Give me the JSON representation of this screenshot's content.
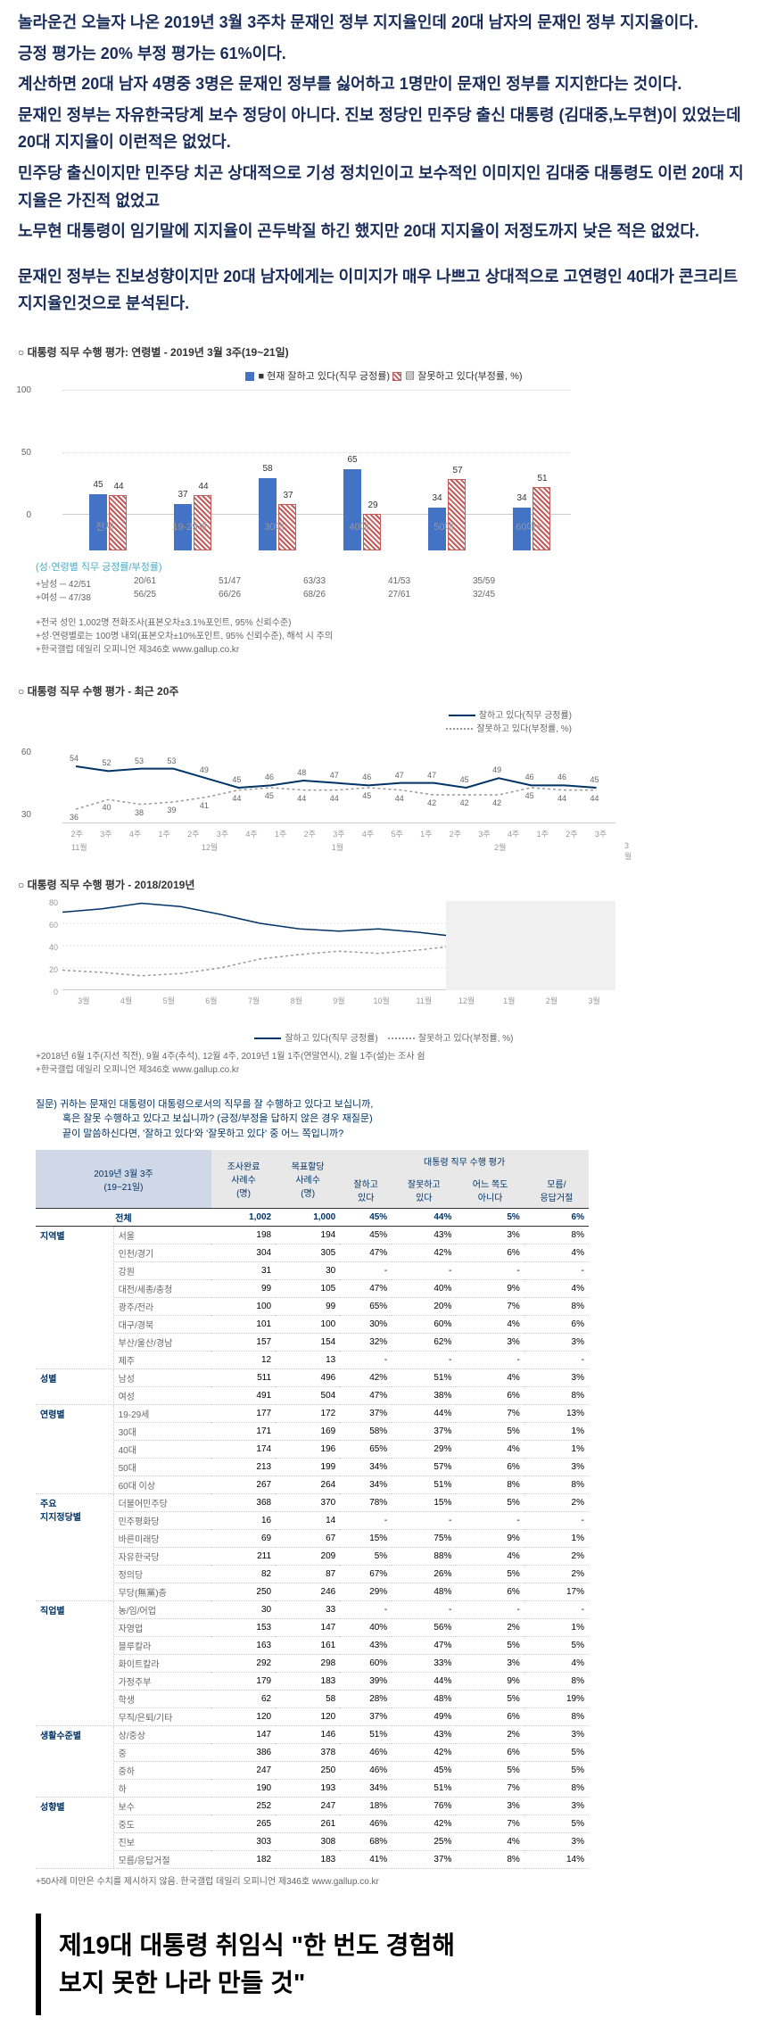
{
  "intro": {
    "p1": "놀라운건 오늘자 나온 2019년 3월 3주차 문재인 정부 지지율인데 20대 남자의 문재인 정부 지지율이다.",
    "p2": "긍정 평가는 20% 부정 평가는 61%이다.",
    "p3": "계산하면 20대 남자 4명중 3명은 문재인 정부를 싫어하고 1명만이 문재인 정부를 지지한다는 것이다.",
    "p4": "문재인 정부는 자유한국당계 보수 정당이 아니다.  진보 정당인 민주당 출신 대통령 (김대중,노무현)이 있었는데 20대 지지율이 이런적은 없었다.",
    "p5": "민주당 출신이지만 민주당 치곤 상대적으로 기성 정치인이고 보수적인 이미지인 김대중 대통령도 이런 20대 지지율은 가진적 없었고",
    "p6": "노무현 대통령이 임기말에 지지율이 곤두박질 하긴 했지만 20대 지지율이 저정도까지 낮은 적은 없었다."
  },
  "summary": "문재인 정부는 진보성향이지만  20대 남자에게는 이미지가 매우 나쁘고 상대적으로 고연령인 40대가 콘크리트 지지율인것으로 분석된다.",
  "chart1": {
    "title": "○  대통령 직무 수행 평가: 연령별 - 2019년 3월 3주(19~21일)",
    "legend_pos": "■ 현재 잘하고 있다(직무 긍정률) ",
    "legend_neg": "▨ 잘못하고 있다(부정률, %)",
    "y_ticks": [
      0,
      50,
      100
    ],
    "categories": [
      "전체",
      "19-29세",
      "30대",
      "40대",
      "50대",
      "60대+"
    ],
    "pos_values": [
      45,
      37,
      58,
      65,
      34,
      34
    ],
    "neg_values": [
      44,
      44,
      37,
      29,
      57,
      51
    ],
    "colors": {
      "pos": "#4472c4",
      "neg_pattern": "#c55a5a"
    },
    "gender_header": "(성·연령별 직무 긍정률/부정률)",
    "male_row": [
      "+남성 ─ 42/51",
      "20/61",
      "51/47",
      "63/33",
      "41/53",
      "35/59"
    ],
    "female_row": [
      "+여성 ─ 47/38",
      "56/25",
      "66/26",
      "68/26",
      "27/61",
      "32/45"
    ],
    "notes": [
      "+전국 성인 1,002명 전화조사(표본오차±3.1%포인트, 95% 신뢰수준)",
      "+성·연령별로는 100명 내외(표본오차±10%포인트, 95% 신뢰수준), 해석 시 주의",
      "+한국갤럽 데일리 오피니언 제346호 www.gallup.co.kr"
    ]
  },
  "chart2": {
    "title": "○  대통령 직무 수행 평가 - 최근 20주",
    "legend_pos": "잘하고 있다(직무 긍정률)",
    "legend_neg": "잘못하고 있다(부정률, %)",
    "y_ticks": [
      30,
      60
    ],
    "pos_line": [
      54,
      52,
      53,
      53,
      49,
      45,
      46,
      48,
      47,
      46,
      47,
      47,
      45,
      49,
      46,
      46,
      45
    ],
    "neg_line": [
      36,
      40,
      38,
      39,
      41,
      44,
      45,
      44,
      44,
      45,
      44,
      42,
      42,
      42,
      45,
      44,
      44
    ],
    "weeks": [
      "2주",
      "3주",
      "4주",
      "1주",
      "2주",
      "3주",
      "4주",
      "1주",
      "2주",
      "3주",
      "4주",
      "5주",
      "1주",
      "2주",
      "3주",
      "4주",
      "1주",
      "2주",
      "3주"
    ],
    "months": {
      "11월": 0,
      "12월": 4,
      "1월": 8,
      "2월": 13,
      "3월": 17
    }
  },
  "chart3": {
    "title": "○  대통령 직무 수행 평가 - 2018/2019년",
    "y_ticks": [
      0,
      20,
      40,
      60,
      80
    ],
    "months": [
      "3월",
      "4월",
      "5월",
      "6월",
      "7월",
      "8월",
      "9월",
      "10월",
      "11월",
      "12월",
      "1월",
      "2월",
      "3월"
    ],
    "legend_pos": "잘하고 있다(직무 긍정률)",
    "legend_neg": "잘못하고 있다(부정률, %)",
    "notes": [
      "+2018년 6월 1주(지선 직전), 9월 4주(추석), 12월 4주, 2019년 1월 1주(연말연시), 2월 1주(설)는 조사 쉼",
      "+한국갤럽 데일리 오피니언 제346호 www.gallup.co.kr"
    ]
  },
  "question": {
    "l1": "질문) 귀하는 문재인 대통령이 대통령으로서의 직무를 잘 수행하고 있다고 보십니까,",
    "l2": "혹은 잘못 수행하고 있다고 보십니까? (긍정/부정을 답하지 않은 경우 재질문)",
    "l3": "끝이 말씀하신다면, '잘하고 있다'와 '잘못하고 있다' 중 어느 쪽입니까?"
  },
  "table": {
    "header_date": "2019년 3월 3주\n(19~21일)",
    "header_top": [
      "조사완료\n사례수\n(명)",
      "목표할당\n사례수\n(명)"
    ],
    "header_eval": "대통령 직무 수행 평가",
    "header_cols": [
      "잘하고\n있다",
      "잘못하고\n있다",
      "어느 쪽도\n아니다",
      "모름/\n응답거절"
    ],
    "total": [
      "전체",
      "1,002",
      "1,000",
      "45%",
      "44%",
      "5%",
      "6%"
    ],
    "groups": [
      {
        "cat": "지역별",
        "rows": [
          [
            "서울",
            "198",
            "194",
            "45%",
            "43%",
            "3%",
            "8%"
          ],
          [
            "인천/경기",
            "304",
            "305",
            "47%",
            "42%",
            "6%",
            "4%"
          ],
          [
            "강원",
            "31",
            "30",
            "-",
            "-",
            "-",
            "-"
          ],
          [
            "대전/세종/충청",
            "99",
            "105",
            "47%",
            "40%",
            "9%",
            "4%"
          ],
          [
            "광주/전라",
            "100",
            "99",
            "65%",
            "20%",
            "7%",
            "8%"
          ],
          [
            "대구/경북",
            "101",
            "100",
            "30%",
            "60%",
            "4%",
            "6%"
          ],
          [
            "부산/울산/경남",
            "157",
            "154",
            "32%",
            "62%",
            "3%",
            "3%"
          ],
          [
            "제주",
            "12",
            "13",
            "-",
            "-",
            "-",
            "-"
          ]
        ]
      },
      {
        "cat": "성별",
        "rows": [
          [
            "남성",
            "511",
            "496",
            "42%",
            "51%",
            "4%",
            "3%"
          ],
          [
            "여성",
            "491",
            "504",
            "47%",
            "38%",
            "6%",
            "8%"
          ]
        ]
      },
      {
        "cat": "연령별",
        "rows": [
          [
            "19-29세",
            "177",
            "172",
            "37%",
            "44%",
            "7%",
            "13%"
          ],
          [
            "30대",
            "171",
            "169",
            "58%",
            "37%",
            "5%",
            "1%"
          ],
          [
            "40대",
            "174",
            "196",
            "65%",
            "29%",
            "4%",
            "1%"
          ],
          [
            "50대",
            "213",
            "199",
            "34%",
            "57%",
            "6%",
            "3%"
          ],
          [
            "60대 이상",
            "267",
            "264",
            "34%",
            "51%",
            "8%",
            "8%"
          ]
        ]
      },
      {
        "cat": "주요\n지지정당별",
        "rows": [
          [
            "더불어민주당",
            "368",
            "370",
            "78%",
            "15%",
            "5%",
            "2%"
          ],
          [
            "민주평화당",
            "16",
            "14",
            "-",
            "-",
            "-",
            "-"
          ],
          [
            "바른미래당",
            "69",
            "67",
            "15%",
            "75%",
            "9%",
            "1%"
          ],
          [
            "자유한국당",
            "211",
            "209",
            "5%",
            "88%",
            "4%",
            "2%"
          ],
          [
            "정의당",
            "82",
            "87",
            "67%",
            "26%",
            "5%",
            "2%"
          ],
          [
            "무당(無黨)층",
            "250",
            "246",
            "29%",
            "48%",
            "6%",
            "17%"
          ]
        ]
      },
      {
        "cat": "직업별",
        "rows": [
          [
            "농/임/어업",
            "30",
            "33",
            "-",
            "-",
            "-",
            "-"
          ],
          [
            "자영업",
            "153",
            "147",
            "40%",
            "56%",
            "2%",
            "1%"
          ],
          [
            "블루칼라",
            "163",
            "161",
            "43%",
            "47%",
            "5%",
            "5%"
          ],
          [
            "화이트칼라",
            "292",
            "298",
            "60%",
            "33%",
            "3%",
            "4%"
          ],
          [
            "가정주부",
            "179",
            "183",
            "39%",
            "44%",
            "9%",
            "8%"
          ],
          [
            "학생",
            "62",
            "58",
            "28%",
            "48%",
            "5%",
            "19%"
          ],
          [
            "무직/은퇴/기타",
            "120",
            "120",
            "37%",
            "49%",
            "6%",
            "8%"
          ]
        ]
      },
      {
        "cat": "생활수준별",
        "rows": [
          [
            "상/중상",
            "147",
            "146",
            "51%",
            "43%",
            "2%",
            "3%"
          ],
          [
            "중",
            "386",
            "378",
            "46%",
            "42%",
            "6%",
            "5%"
          ],
          [
            "중하",
            "247",
            "250",
            "46%",
            "45%",
            "5%",
            "5%"
          ],
          [
            "하",
            "190",
            "193",
            "34%",
            "51%",
            "7%",
            "8%"
          ]
        ]
      },
      {
        "cat": "성향별",
        "rows": [
          [
            "보수",
            "252",
            "247",
            "18%",
            "76%",
            "3%",
            "3%"
          ],
          [
            "중도",
            "265",
            "261",
            "46%",
            "42%",
            "7%",
            "5%"
          ],
          [
            "진보",
            "303",
            "308",
            "68%",
            "25%",
            "4%",
            "3%"
          ],
          [
            "모름/응답거절",
            "182",
            "183",
            "41%",
            "37%",
            "8%",
            "14%"
          ]
        ]
      }
    ],
    "note": "+50사례 미만은 수치를 제시하지 않음. 한국갤럽 데일리 오피니언 제346호 www.gallup.co.kr"
  },
  "headline": {
    "l1": "제19대 대통령 취임식 \"한 번도 경험해",
    "l2": "보지 못한 나라 만들 것\""
  }
}
